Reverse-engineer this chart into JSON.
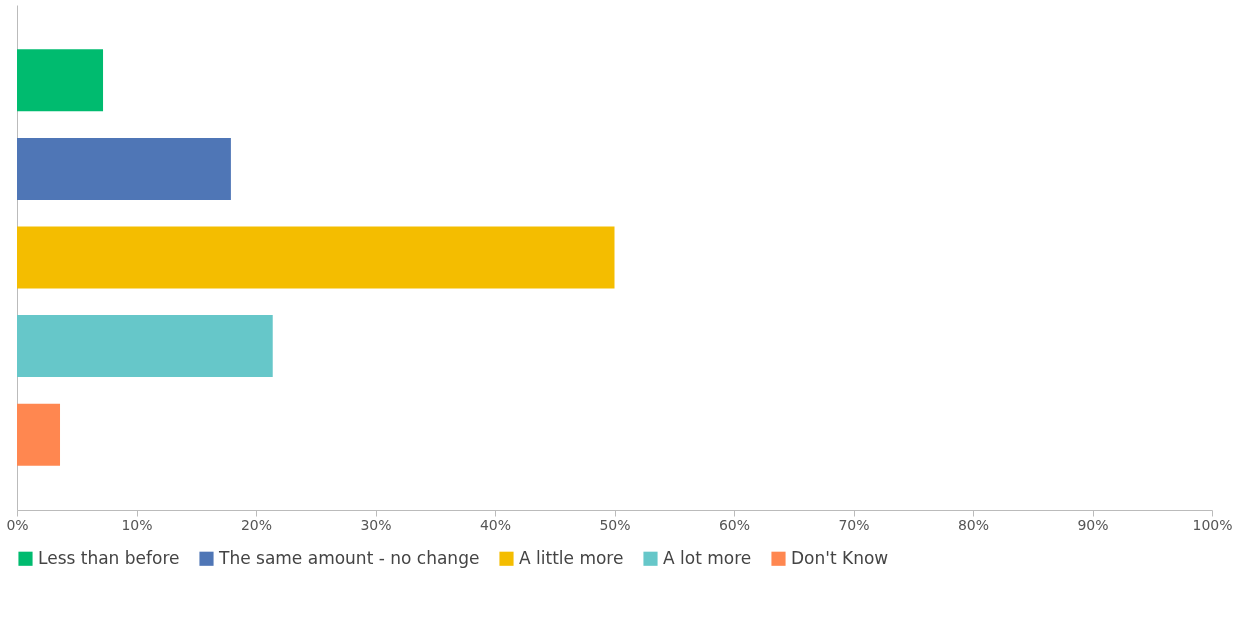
{
  "chart_data": {
    "type": "bar",
    "orientation": "horizontal",
    "categories": [
      null,
      null,
      null,
      null,
      null
    ],
    "series": [
      {
        "name": "Less than before",
        "color": "#00bb6f",
        "values": [
          7.2,
          null,
          null,
          null,
          null
        ]
      },
      {
        "name": "The same amount - no change",
        "color": "#4f76b6",
        "values": [
          null,
          17.9,
          null,
          null,
          null
        ]
      },
      {
        "name": "A little more",
        "color": "#f4bd00",
        "values": [
          null,
          null,
          50.0,
          null,
          null
        ]
      },
      {
        "name": "A lot more",
        "color": "#66c7c9",
        "values": [
          null,
          null,
          null,
          21.4,
          null
        ]
      },
      {
        "name": "Don't Know",
        "color": "#ff8750",
        "values": [
          null,
          null,
          null,
          null,
          3.6
        ]
      }
    ],
    "xlim": [
      0,
      100
    ],
    "xticks": [
      {
        "value": 0,
        "label": "0%"
      },
      {
        "value": 10,
        "label": "10%"
      },
      {
        "value": 20,
        "label": "20%"
      },
      {
        "value": 30,
        "label": "30%"
      },
      {
        "value": 40,
        "label": "40%"
      },
      {
        "value": 50,
        "label": "50%"
      },
      {
        "value": 60,
        "label": "60%"
      },
      {
        "value": 70,
        "label": "70%"
      },
      {
        "value": 80,
        "label": "80%"
      },
      {
        "value": 90,
        "label": "90%"
      },
      {
        "value": 100,
        "label": "100%"
      }
    ],
    "tick_labels": "x",
    "grid": false,
    "legend": "bottom"
  }
}
